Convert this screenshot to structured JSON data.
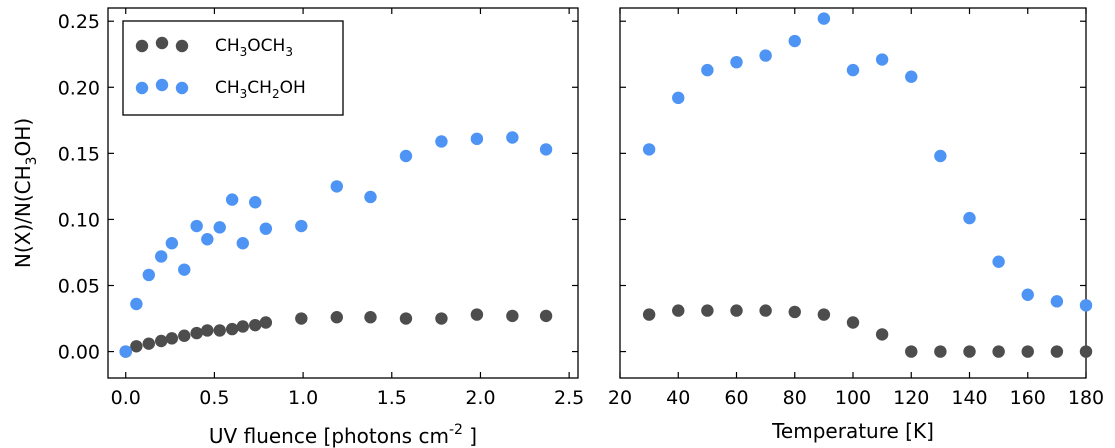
{
  "ylabel": "N(X)/N(CH₃OH)",
  "chart_data": [
    {
      "type": "scatter",
      "xlabel": "UV fluence [photons cm⁻² ]",
      "ylabel": "N(X)/N(CH₃OH)",
      "xlim": [
        -0.1,
        2.55
      ],
      "ylim": [
        -0.02,
        0.26
      ],
      "xticks": [
        "0.0",
        "0.5",
        "1.0",
        "1.5",
        "2.0",
        "2.5"
      ],
      "yticks": [
        "0.00",
        "0.05",
        "0.10",
        "0.15",
        "0.20",
        "0.25"
      ],
      "grid": false,
      "legend_position": "top-left",
      "series": [
        {
          "name": "CH₃OCH₃",
          "color": "#4d4d4d",
          "points": [
            [
              0.0,
              0.0
            ],
            [
              0.06,
              0.004
            ],
            [
              0.13,
              0.006
            ],
            [
              0.2,
              0.008
            ],
            [
              0.26,
              0.01
            ],
            [
              0.33,
              0.012
            ],
            [
              0.4,
              0.014
            ],
            [
              0.46,
              0.016
            ],
            [
              0.53,
              0.016
            ],
            [
              0.6,
              0.017
            ],
            [
              0.66,
              0.019
            ],
            [
              0.73,
              0.02
            ],
            [
              0.79,
              0.022
            ],
            [
              0.99,
              0.025
            ],
            [
              1.19,
              0.026
            ],
            [
              1.38,
              0.026
            ],
            [
              1.58,
              0.025
            ],
            [
              1.78,
              0.025
            ],
            [
              1.98,
              0.028
            ],
            [
              2.18,
              0.027
            ],
            [
              2.37,
              0.027
            ]
          ]
        },
        {
          "name": "CH₃CH₂OH",
          "color": "#4d94f4",
          "points": [
            [
              0.0,
              0.0
            ],
            [
              0.06,
              0.036
            ],
            [
              0.13,
              0.058
            ],
            [
              0.2,
              0.072
            ],
            [
              0.26,
              0.082
            ],
            [
              0.33,
              0.062
            ],
            [
              0.4,
              0.095
            ],
            [
              0.46,
              0.085
            ],
            [
              0.53,
              0.094
            ],
            [
              0.6,
              0.115
            ],
            [
              0.66,
              0.082
            ],
            [
              0.73,
              0.113
            ],
            [
              0.79,
              0.093
            ],
            [
              0.99,
              0.095
            ],
            [
              1.19,
              0.125
            ],
            [
              1.38,
              0.117
            ],
            [
              1.58,
              0.148
            ],
            [
              1.78,
              0.159
            ],
            [
              1.98,
              0.161
            ],
            [
              2.18,
              0.162
            ],
            [
              2.37,
              0.153
            ]
          ]
        }
      ]
    },
    {
      "type": "scatter",
      "xlabel": "Temperature [K]",
      "xlim": [
        20,
        180
      ],
      "ylim": [
        -0.02,
        0.26
      ],
      "xticks": [
        "20",
        "40",
        "60",
        "80",
        "100",
        "120",
        "140",
        "160",
        "180"
      ],
      "grid": false,
      "series": [
        {
          "name": "CH₃OCH₃",
          "color": "#4d4d4d",
          "points": [
            [
              30,
              0.028
            ],
            [
              40,
              0.031
            ],
            [
              50,
              0.031
            ],
            [
              60,
              0.031
            ],
            [
              70,
              0.031
            ],
            [
              80,
              0.03
            ],
            [
              90,
              0.028
            ],
            [
              100,
              0.022
            ],
            [
              110,
              0.013
            ],
            [
              120,
              0.0
            ],
            [
              130,
              0.0
            ],
            [
              140,
              0.0
            ],
            [
              150,
              0.0
            ],
            [
              160,
              0.0
            ],
            [
              170,
              0.0
            ],
            [
              180,
              0.0
            ]
          ]
        },
        {
          "name": "CH₃CH₂OH",
          "color": "#4d94f4",
          "points": [
            [
              30,
              0.153
            ],
            [
              40,
              0.192
            ],
            [
              50,
              0.213
            ],
            [
              60,
              0.219
            ],
            [
              70,
              0.224
            ],
            [
              80,
              0.235
            ],
            [
              90,
              0.252
            ],
            [
              100,
              0.213
            ],
            [
              110,
              0.221
            ],
            [
              120,
              0.208
            ],
            [
              130,
              0.148
            ],
            [
              140,
              0.101
            ],
            [
              150,
              0.068
            ],
            [
              160,
              0.043
            ],
            [
              170,
              0.038
            ],
            [
              180,
              0.035
            ]
          ]
        }
      ]
    }
  ],
  "legend": [
    {
      "formula": "CH₃OCH₃",
      "parts": [
        "CH",
        "3",
        "OCH",
        "3"
      ]
    },
    {
      "formula": "CH₃CH₂OH",
      "parts": [
        "CH",
        "3",
        "CH",
        "2",
        "OH"
      ]
    }
  ],
  "labels": {
    "ylabel_parts": [
      "N(X)/N(CH",
      "3",
      "OH)"
    ],
    "xlabel1_parts": [
      "UV fluence [photons cm",
      "-2",
      " ]"
    ]
  }
}
